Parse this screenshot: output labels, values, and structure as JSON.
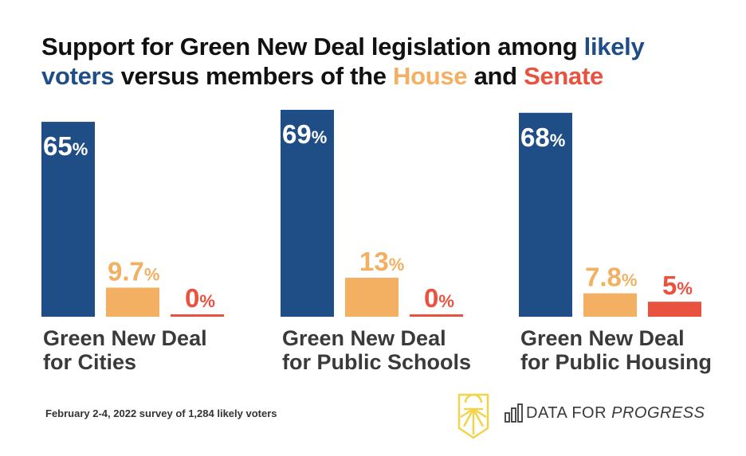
{
  "title": {
    "seg1": "Support for Green New Deal legislation among ",
    "seg2": "likely voters",
    "seg3": " versus members of the ",
    "seg4": "House",
    "seg5": " and ",
    "seg6": "Senate"
  },
  "colors": {
    "voters": "#1f4e86",
    "house": "#f3b062",
    "senate": "#e8523f",
    "title_text": "#111111",
    "label_text": "#3a3a3a"
  },
  "chart_data": {
    "type": "bar",
    "categories": [
      [
        "Green New Deal",
        "for Cities"
      ],
      [
        "Green New Deal",
        "for Public Schools"
      ],
      [
        "Green New Deal",
        "for Public Housing"
      ]
    ],
    "series": [
      {
        "name": "likely voters",
        "values": [
          65,
          69,
          68
        ],
        "labels": [
          "65%",
          "69%",
          "68%"
        ]
      },
      {
        "name": "House",
        "values": [
          9.7,
          13,
          7.8
        ],
        "labels": [
          "9.7%",
          "13%",
          "7.8%"
        ]
      },
      {
        "name": "Senate",
        "values": [
          0,
          0,
          5
        ],
        "labels": [
          "0%",
          "0%",
          "5%"
        ]
      }
    ],
    "ylim": [
      0,
      69
    ],
    "grid": false
  },
  "footnote": "February 2-4, 2022 survey of 1,284 likely voters",
  "brand": {
    "name_regular": "DATA FOR ",
    "name_italic": "PROGRESS",
    "logo_icon": "sunrise-logo-icon",
    "chart_icon": "bar-chart-icon"
  }
}
